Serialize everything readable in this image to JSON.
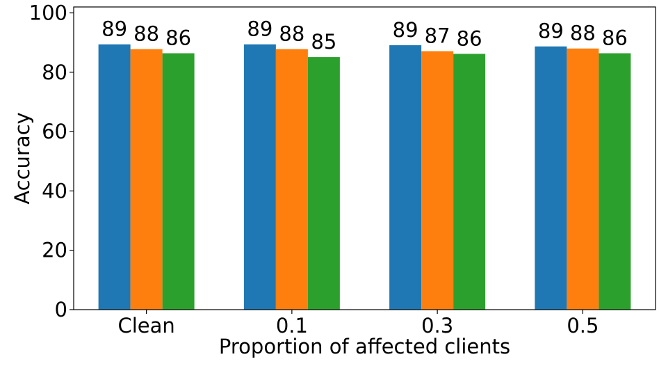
{
  "chart_data": {
    "type": "bar",
    "title": "",
    "xlabel": "Proportion of affected clients",
    "ylabel": "Accuracy",
    "categories": [
      "Clean",
      "0.1",
      "0.3",
      "0.5"
    ],
    "ylim": [
      0,
      102
    ],
    "yticks": [
      0,
      20,
      40,
      60,
      80,
      100
    ],
    "grid": false,
    "legend": "none",
    "series": [
      {
        "values": [
          89.4,
          89.4,
          89.1,
          88.7
        ],
        "labels": [
          "89",
          "89",
          "89",
          "89"
        ],
        "color": "#1f77b4"
      },
      {
        "values": [
          87.8,
          87.8,
          87.1,
          88.0
        ],
        "labels": [
          "88",
          "88",
          "87",
          "88"
        ],
        "color": "#ff7f0e"
      },
      {
        "values": [
          86.4,
          85.1,
          86.2,
          86.4
        ],
        "labels": [
          "86",
          "85",
          "86",
          "86"
        ],
        "color": "#2ca02c"
      }
    ]
  }
}
